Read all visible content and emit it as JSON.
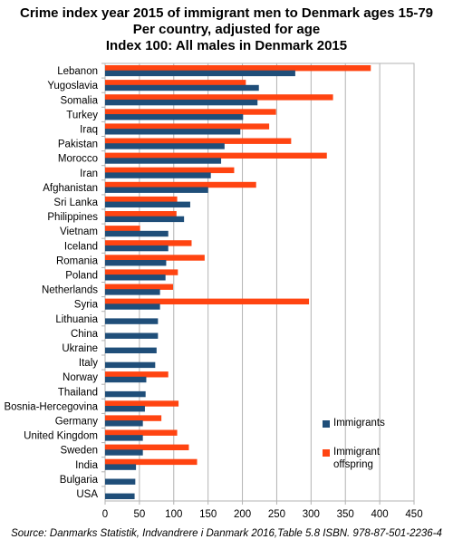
{
  "chart_data": {
    "type": "bar",
    "orientation": "horizontal",
    "title": "Crime index year 2015 of immigrant men to Denmark ages 15-79",
    "subtitle": [
      "Per country, adjusted for age",
      "Index 100: All males in Denmark 2015"
    ],
    "categories": [
      "Lebanon",
      "Yugoslavia",
      "Somalia",
      "Turkey",
      "Iraq",
      "Pakistan",
      "Morocco",
      "Iran",
      "Afghanistan",
      "Sri Lanka",
      "Philippines",
      "Vietnam",
      "Iceland",
      "Romania",
      "Poland",
      "Netherlands",
      "Syria",
      "Lithuania",
      "China",
      "Ukraine",
      "Italy",
      "Norway",
      "Thailand",
      "Bosnia-Hercegovina",
      "Germany",
      "United Kingdom",
      "Sweden",
      "India",
      "Bulgaria",
      "USA"
    ],
    "series": [
      {
        "name": "Immigrants",
        "color": "#1f4e79",
        "values": [
          277,
          224,
          222,
          201,
          197,
          174,
          169,
          154,
          150,
          124,
          115,
          92,
          92,
          89,
          88,
          80,
          80,
          77,
          77,
          75,
          73,
          60,
          59,
          58,
          55,
          55,
          55,
          45,
          44,
          43
        ]
      },
      {
        "name": "Immigrant offspring",
        "color": "#ff4411",
        "values": [
          387,
          205,
          332,
          249,
          239,
          271,
          323,
          188,
          220,
          105,
          104,
          51,
          126,
          145,
          106,
          99,
          297,
          null,
          null,
          null,
          null,
          92,
          null,
          107,
          82,
          105,
          122,
          134,
          null,
          null
        ]
      }
    ],
    "xlim": [
      0,
      450
    ],
    "xticks": [
      0,
      50,
      100,
      150,
      200,
      250,
      300,
      350,
      400,
      450
    ],
    "grid": "vertical",
    "legend": "lower-right",
    "source": "Source: Danmarks Statistik, Indvandrere i Danmark 2016,Table 5.8 ISBN. 978-87-501-2236-4"
  }
}
